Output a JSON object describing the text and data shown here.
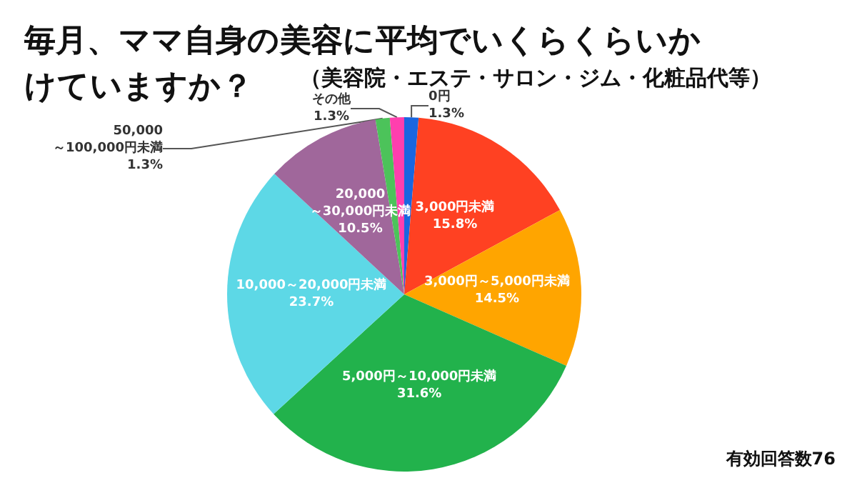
{
  "chart_data": {
    "type": "pie",
    "title": "毎月、ママ自身の美容に平均でいくらくらいかけていますか？",
    "subtitle": "（美容院・エステ・サロン・ジム・化粧品代等）",
    "categories": [
      "0円",
      "3,000円未満",
      "3,000円～5,000円未満",
      "5,000円～10,000円未満",
      "10,000～20,000円未満",
      "20,000\n～30,000円未満",
      "50,000\n～100,000円未満",
      "その他"
    ],
    "values": [
      1.3,
      15.8,
      14.5,
      31.6,
      23.7,
      10.5,
      1.3,
      1.3
    ],
    "value_labels": [
      "1.3%",
      "15.8%",
      "14.5%",
      "31.6%",
      "23.7%",
      "10.5%",
      "1.3%",
      "1.3%"
    ],
    "colors": [
      "#1a66e0",
      "#ff4122",
      "#ffa500",
      "#22b24c",
      "#5dd8e6",
      "#a0679b",
      "#4cc35a",
      "#ff3fae"
    ],
    "annotations": [
      "有効回答数76"
    ],
    "legend": false
  }
}
